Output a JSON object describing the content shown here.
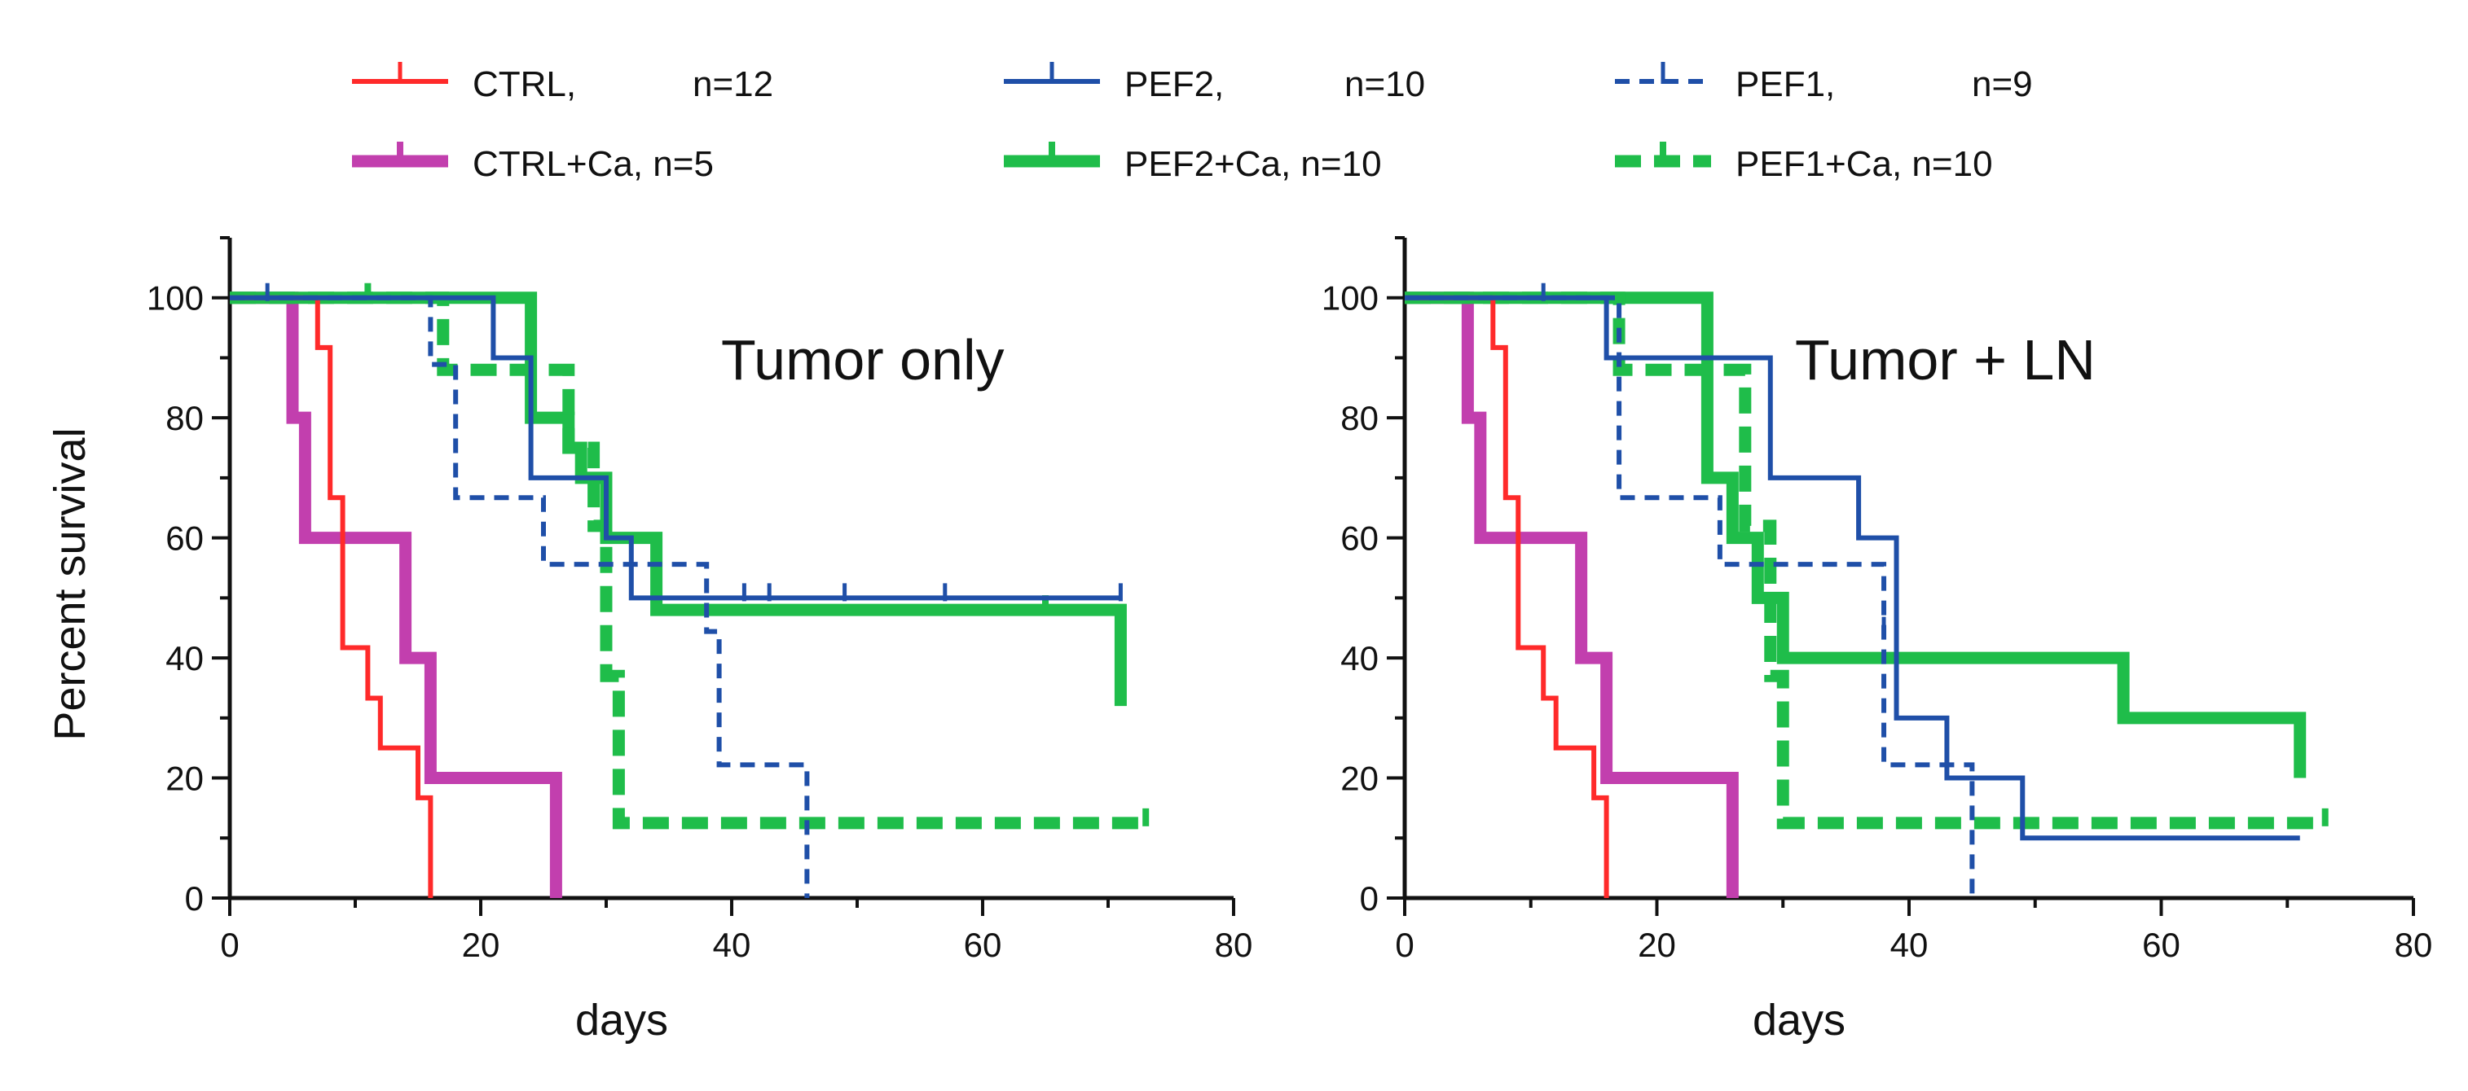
{
  "legend": [
    {
      "label": "CTRL,",
      "n": "n=12",
      "color": "#ff2a2a",
      "style": "solid-thin"
    },
    {
      "label": "PEF2,",
      "n": "n=10",
      "color": "#1f4fa8",
      "style": "solid-thin"
    },
    {
      "label": "PEF1,",
      "n": "n=9",
      "color": "#1f4fa8",
      "style": "dashed-thin"
    },
    {
      "label": "CTRL+Ca, n=5",
      "n": "",
      "color": "#c23fae",
      "style": "solid-thick"
    },
    {
      "label": "PEF2+Ca, n=10",
      "n": "",
      "color": "#1fbd4a",
      "style": "solid-thick"
    },
    {
      "label": "PEF1+Ca, n=10",
      "n": "",
      "color": "#1fbd4a",
      "style": "dashed-thick"
    }
  ],
  "chart_data": [
    {
      "type": "line",
      "title": "Tumor only",
      "xlabel": "days",
      "ylabel": "Percent survival",
      "xlim": [
        0,
        80
      ],
      "ylim": [
        0,
        110
      ],
      "xticks": [
        0,
        20,
        40,
        60,
        80
      ],
      "yticks": [
        0,
        20,
        40,
        60,
        80,
        100
      ],
      "series": [
        {
          "name": "CTRL",
          "color": "#ff2a2a",
          "style": "solid-thin",
          "x": [
            0,
            7,
            8,
            9,
            11,
            12,
            15,
            16
          ],
          "y": [
            100,
            91.7,
            66.7,
            41.7,
            33.3,
            25,
            16.7,
            0
          ],
          "censor": []
        },
        {
          "name": "CTRL+Ca",
          "color": "#c23fae",
          "style": "solid-thick",
          "x": [
            0,
            5,
            6,
            14,
            16,
            26
          ],
          "y": [
            100,
            80,
            60,
            40,
            20,
            0
          ],
          "censor": []
        },
        {
          "name": "PEF2",
          "color": "#1f4fa8",
          "style": "solid-thin",
          "x": [
            0,
            21,
            24,
            30,
            32,
            35,
            71
          ],
          "y": [
            100,
            90,
            70,
            60,
            50,
            50,
            50
          ],
          "censor": [
            [
              43,
              50
            ],
            [
              49,
              50
            ],
            [
              57,
              50
            ],
            [
              71,
              50
            ]
          ]
        },
        {
          "name": "PEF2+Ca",
          "color": "#1fbd4a",
          "style": "solid-thick",
          "x": [
            0,
            24,
            27,
            28,
            30,
            34,
            71
          ],
          "y": [
            100,
            80,
            75,
            70,
            60,
            48,
            32
          ],
          "censor": [
            [
              65,
              48
            ]
          ]
        },
        {
          "name": "PEF1",
          "color": "#1f4fa8",
          "style": "dashed-thin",
          "x": [
            0,
            16,
            18,
            25,
            38,
            39,
            46
          ],
          "y": [
            100,
            88.9,
            66.7,
            55.6,
            44.4,
            22.2,
            0
          ],
          "censor": [
            [
              3,
              100
            ],
            [
              41,
              50
            ]
          ]
        },
        {
          "name": "PEF1+Ca",
          "color": "#1fbd4a",
          "style": "dashed-thick",
          "x": [
            0,
            17,
            27,
            29,
            30,
            31,
            73
          ],
          "y": [
            100,
            88,
            75,
            62,
            37,
            12.5,
            12.5
          ],
          "censor": [
            [
              11,
              100
            ],
            [
              73,
              12.5
            ]
          ]
        }
      ]
    },
    {
      "type": "line",
      "title": "Tumor + LN",
      "xlabel": "days",
      "ylabel": "",
      "xlim": [
        0,
        80
      ],
      "ylim": [
        0,
        110
      ],
      "xticks": [
        0,
        20,
        40,
        60,
        80
      ],
      "yticks": [
        0,
        20,
        40,
        60,
        80,
        100
      ],
      "series": [
        {
          "name": "CTRL",
          "color": "#ff2a2a",
          "style": "solid-thin",
          "x": [
            0,
            7,
            8,
            9,
            11,
            12,
            15,
            16
          ],
          "y": [
            100,
            91.7,
            66.7,
            41.7,
            33.3,
            25,
            16.7,
            0
          ],
          "censor": []
        },
        {
          "name": "CTRL+Ca",
          "color": "#c23fae",
          "style": "solid-thick",
          "x": [
            0,
            5,
            6,
            14,
            16,
            26
          ],
          "y": [
            100,
            80,
            60,
            40,
            20,
            0
          ],
          "censor": []
        },
        {
          "name": "PEF2",
          "color": "#1f4fa8",
          "style": "solid-thin",
          "x": [
            0,
            16,
            29,
            36,
            39,
            43,
            49,
            71
          ],
          "y": [
            100,
            90,
            70,
            60,
            30,
            20,
            10,
            10
          ],
          "censor": []
        },
        {
          "name": "PEF2+Ca",
          "color": "#1fbd4a",
          "style": "solid-thick",
          "x": [
            0,
            24,
            26,
            28,
            30,
            32,
            57,
            71
          ],
          "y": [
            100,
            70,
            60,
            50,
            40,
            40,
            30,
            20
          ],
          "censor": []
        },
        {
          "name": "PEF1",
          "color": "#1f4fa8",
          "style": "dashed-thin",
          "x": [
            0,
            17,
            25,
            38,
            45
          ],
          "y": [
            100,
            66.7,
            55.6,
            22.2,
            0
          ],
          "censor": [
            [
              11,
              100
            ],
            [
              38,
              44.4
            ]
          ]
        },
        {
          "name": "PEF1+Ca",
          "color": "#1fbd4a",
          "style": "dashed-thick",
          "x": [
            0,
            17,
            27,
            29,
            30,
            73
          ],
          "y": [
            100,
            88,
            62,
            37,
            12.5,
            12.5
          ],
          "censor": [
            [
              73,
              12.5
            ]
          ]
        }
      ]
    }
  ]
}
